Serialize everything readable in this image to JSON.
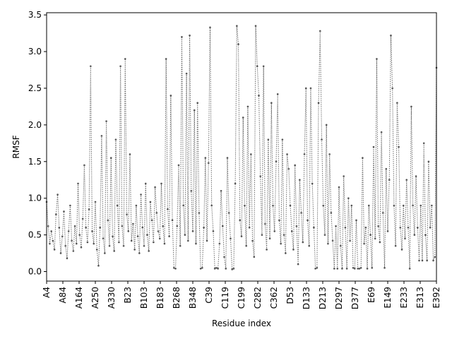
{
  "chart_data": {
    "type": "line",
    "title": "",
    "xlabel": "Residue index",
    "ylabel": "RMSF",
    "ylim": [
      -0.13,
      3.53
    ],
    "yticks": [
      0.0,
      0.5,
      1.0,
      1.5,
      2.0,
      2.5,
      3.0,
      3.5
    ],
    "ytick_labels": [
      "0.0",
      "0.5",
      "1.0",
      "1.5",
      "2.0",
      "2.5",
      "3.0",
      "3.5"
    ],
    "xticks": [
      "A4",
      "A84",
      "A164",
      "A250",
      "A330",
      "B23",
      "B103",
      "B183",
      "B268",
      "B348",
      "C39",
      "C119",
      "C199",
      "C282",
      "C362",
      "D53",
      "D133",
      "D213",
      "D297",
      "D377",
      "E69",
      "E149",
      "E233",
      "E313",
      "E392"
    ],
    "series_style": {
      "color": "#555555",
      "linestyle": "dotted",
      "marker": "point"
    },
    "grid": false,
    "legend": "none",
    "series": [
      {
        "values": [
          0.95,
          0.62,
          0.38,
          0.55,
          0.42,
          0.3,
          0.78,
          1.05,
          0.6,
          0.25,
          0.48,
          0.82,
          0.35,
          0.18,
          0.55,
          0.9,
          0.42,
          0.28,
          0.62,
          0.38,
          1.2,
          0.5,
          0.33,
          0.72,
          1.45,
          0.6,
          0.4,
          0.85,
          2.8,
          0.55,
          0.38,
          0.95,
          0.3,
          0.08,
          0.6,
          1.85,
          0.45,
          0.25,
          2.05,
          0.7,
          0.35,
          1.55,
          0.48,
          0.28,
          1.8,
          0.9,
          0.4,
          2.8,
          0.62,
          0.35,
          2.9,
          0.78,
          0.55,
          1.6,
          0.42,
          0.65,
          0.3,
          0.9,
          0.48,
          0.25,
          1.05,
          0.6,
          0.35,
          1.2,
          0.5,
          0.28,
          0.95,
          0.7,
          0.4,
          1.15,
          0.8,
          0.55,
          0.45,
          1.2,
          0.62,
          0.38,
          2.9,
          0.85,
          0.48,
          2.4,
          0.7,
          0.05,
          0.04,
          0.62,
          1.45,
          0.35,
          3.2,
          0.9,
          0.5,
          2.7,
          0.42,
          3.22,
          1.1,
          0.55,
          2.2,
          0.38,
          2.3,
          0.8,
          0.04,
          0.05,
          0.6,
          1.55,
          0.42,
          1.48,
          3.33,
          0.9,
          0.55,
          0.04,
          0.05,
          0.04,
          0.38,
          1.1,
          0.62,
          0.2,
          0.04,
          1.55,
          0.8,
          0.45,
          0.03,
          0.04,
          1.2,
          3.35,
          3.1,
          0.7,
          0.48,
          2.1,
          0.9,
          0.35,
          2.25,
          0.6,
          1.6,
          0.42,
          0.2,
          3.35,
          2.8,
          2.4,
          1.3,
          0.5,
          2.8,
          0.65,
          0.3,
          1.8,
          0.45,
          2.3,
          0.9,
          0.55,
          1.5,
          2.42,
          0.7,
          0.38,
          1.8,
          0.5,
          0.25,
          1.6,
          1.4,
          0.9,
          0.55,
          0.3,
          1.45,
          0.62,
          0.1,
          1.25,
          0.8,
          0.4,
          1.6,
          2.5,
          0.7,
          0.35,
          2.5,
          1.2,
          0.6,
          0.04,
          0.05,
          2.3,
          3.28,
          1.8,
          0.9,
          0.5,
          2.0,
          0.38,
          1.6,
          0.8,
          0.42,
          0.04,
          0.62,
          0.04,
          1.15,
          0.35,
          0.04,
          1.3,
          0.6,
          0.04,
          1.0,
          0.42,
          0.9,
          0.05,
          0.04,
          0.7,
          0.04,
          0.04,
          0.05,
          1.55,
          0.38,
          0.6,
          0.04,
          0.9,
          0.5,
          0.05,
          1.7,
          0.45,
          2.9,
          0.62,
          0.4,
          1.9,
          0.8,
          0.05,
          1.4,
          0.55,
          1.25,
          3.22,
          2.5,
          0.9,
          0.35,
          2.3,
          1.7,
          0.6,
          0.3,
          0.9,
          0.45,
          1.25,
          0.6,
          0.04,
          2.25,
          0.9,
          0.5,
          1.3,
          0.6,
          0.15,
          0.9,
          0.15,
          1.75,
          0.5,
          0.15,
          1.5,
          0.6,
          0.9,
          0.15,
          0.2,
          2.78
        ]
      }
    ]
  }
}
